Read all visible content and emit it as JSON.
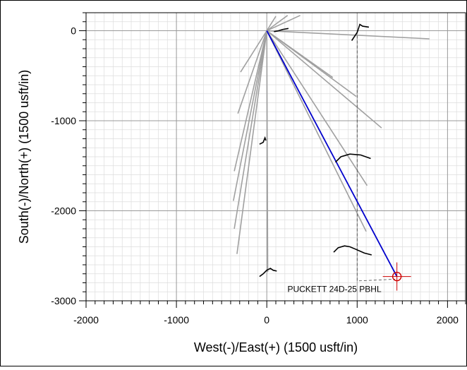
{
  "chart_data": {
    "type": "line",
    "xlabel": "West(-)/East(+) (1500 usft/in)",
    "ylabel": "South(-)/North(+) (1500 usft/in)",
    "xlim": [
      -2000,
      2200
    ],
    "ylim": [
      -3000,
      200
    ],
    "x_ticks": [
      -2000,
      -1000,
      0,
      1000,
      2000
    ],
    "x_tick_labels": [
      "-2000",
      "-1000",
      "0",
      "1000",
      "2000"
    ],
    "y_ticks": [
      0,
      -1000,
      -2000,
      -3000
    ],
    "y_tick_labels": [
      "0",
      "-1000",
      "-2000",
      "-3000"
    ],
    "grid": true,
    "annotation": {
      "text": "PUCKETT 24D-25 PBHL",
      "x": 1440,
      "y": -2730
    },
    "colors": {
      "planned": "#0000cc",
      "offset": "#a0a0a0",
      "actual": "#000000",
      "target": "#cc0000",
      "grid_major": "#999999",
      "grid_minor": "#dddddd"
    },
    "planned_wellpath": {
      "points": [
        [
          0,
          0
        ],
        [
          1440,
          -2730
        ]
      ]
    },
    "offset_wellpaths": [
      {
        "points": [
          [
            0,
            0
          ],
          [
            100,
            160
          ]
        ]
      },
      {
        "points": [
          [
            0,
            0
          ],
          [
            230,
            170
          ]
        ]
      },
      {
        "points": [
          [
            0,
            0
          ],
          [
            370,
            170
          ]
        ]
      },
      {
        "points": [
          [
            0,
            0
          ],
          [
            1800,
            -90
          ]
        ]
      },
      {
        "points": [
          [
            0,
            0
          ],
          [
            730,
            -520
          ]
        ]
      },
      {
        "points": [
          [
            0,
            0
          ],
          [
            990,
            -730
          ]
        ]
      },
      {
        "points": [
          [
            0,
            0
          ],
          [
            1270,
            -1080
          ]
        ]
      },
      {
        "points": [
          [
            0,
            0
          ],
          [
            1110,
            -1720
          ]
        ]
      },
      {
        "points": [
          [
            0,
            0
          ],
          [
            1100,
            -2230
          ]
        ]
      },
      {
        "points": [
          [
            0,
            0
          ],
          [
            -290,
            -460
          ]
        ]
      },
      {
        "points": [
          [
            0,
            0
          ],
          [
            -320,
            -920
          ]
        ]
      },
      {
        "points": [
          [
            0,
            0
          ],
          [
            -360,
            -1560
          ]
        ]
      },
      {
        "points": [
          [
            0,
            0
          ],
          [
            -370,
            -1890
          ]
        ]
      },
      {
        "points": [
          [
            0,
            0
          ],
          [
            -360,
            -2200
          ]
        ]
      },
      {
        "points": [
          [
            0,
            0
          ],
          [
            -330,
            -2480
          ]
        ]
      },
      {
        "points": [
          [
            0,
            0
          ],
          [
            10,
            -2680
          ]
        ]
      },
      {
        "points": [
          [
            1000,
            0
          ],
          [
            1000,
            -2780
          ],
          [
            1420,
            -2760
          ]
        ]
      }
    ],
    "survey_segments": [
      {
        "points": [
          [
            80,
            -10
          ],
          [
            130,
            0
          ],
          [
            180,
            15
          ],
          [
            240,
            25
          ]
        ]
      },
      {
        "points": [
          [
            940,
            -110
          ],
          [
            1000,
            -20
          ],
          [
            1030,
            70
          ],
          [
            1060,
            50
          ],
          [
            1130,
            40
          ]
        ]
      },
      {
        "points": [
          [
            -80,
            -1260
          ],
          [
            -40,
            -1240
          ],
          [
            -20,
            -1190
          ],
          [
            -10,
            -1220
          ]
        ]
      },
      {
        "points": [
          [
            760,
            -1460
          ],
          [
            820,
            -1400
          ],
          [
            920,
            -1370
          ],
          [
            1040,
            -1380
          ],
          [
            1150,
            -1420
          ]
        ]
      },
      {
        "points": [
          [
            740,
            -2460
          ],
          [
            790,
            -2410
          ],
          [
            860,
            -2390
          ],
          [
            920,
            -2400
          ],
          [
            990,
            -2430
          ],
          [
            1080,
            -2470
          ],
          [
            1160,
            -2490
          ]
        ]
      },
      {
        "points": [
          [
            -80,
            -2730
          ],
          [
            -40,
            -2700
          ],
          [
            0,
            -2660
          ],
          [
            40,
            -2640
          ],
          [
            70,
            -2660
          ],
          [
            110,
            -2670
          ]
        ]
      }
    ],
    "target": {
      "x": 1440,
      "y": -2730
    }
  }
}
